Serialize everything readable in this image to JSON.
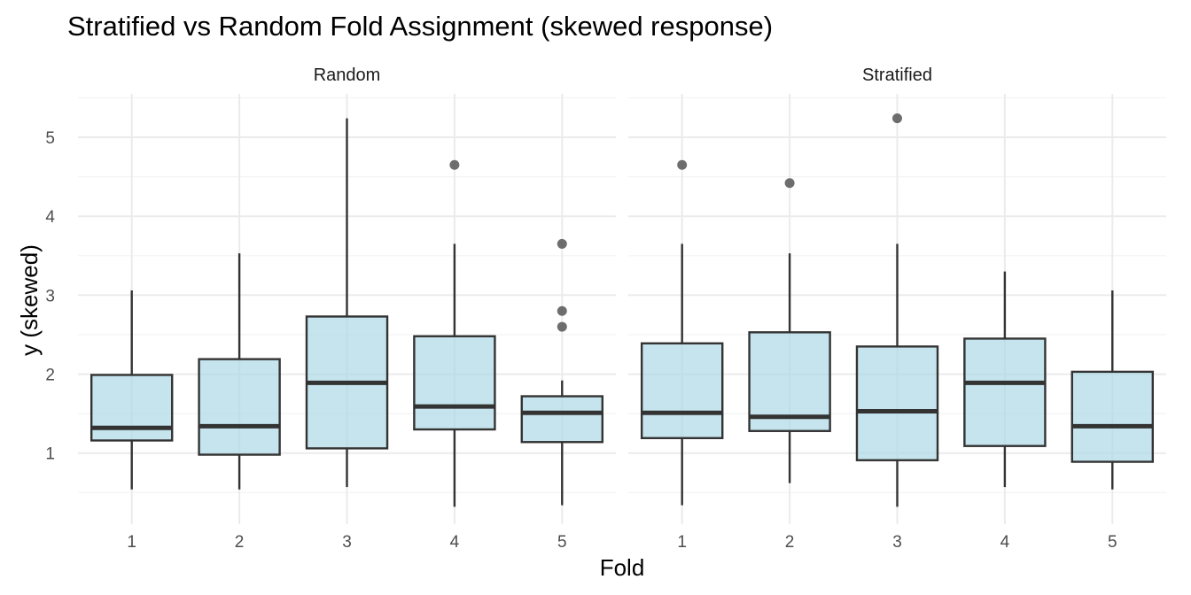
{
  "chart_data": {
    "type": "boxplot",
    "title": "Stratified vs Random Fold Assignment (skewed response)",
    "xlabel": "Fold",
    "ylabel": "y (skewed)",
    "ylim": [
      0.1,
      5.55
    ],
    "yticks": [
      1,
      2,
      3,
      4,
      5
    ],
    "categories": [
      "1",
      "2",
      "3",
      "4",
      "5"
    ],
    "grid": true,
    "colors": {
      "box_fill": "#add8e6",
      "box_line": "#333333",
      "outlier": "#555555"
    },
    "panels": [
      {
        "name": "Random",
        "boxes": [
          {
            "fold": "1",
            "lower": 0.54,
            "q1": 1.16,
            "median": 1.32,
            "q3": 1.99,
            "upper": 3.06,
            "outliers": []
          },
          {
            "fold": "2",
            "lower": 0.54,
            "q1": 0.98,
            "median": 1.34,
            "q3": 2.19,
            "upper": 3.53,
            "outliers": []
          },
          {
            "fold": "3",
            "lower": 0.57,
            "q1": 1.06,
            "median": 1.89,
            "q3": 2.73,
            "upper": 5.24,
            "outliers": []
          },
          {
            "fold": "4",
            "lower": 0.32,
            "q1": 1.3,
            "median": 1.59,
            "q3": 2.48,
            "upper": 3.65,
            "outliers": [
              4.65
            ]
          },
          {
            "fold": "5",
            "lower": 0.34,
            "q1": 1.14,
            "median": 1.51,
            "q3": 1.72,
            "upper": 1.92,
            "outliers": [
              3.65,
              2.8,
              2.6
            ]
          }
        ]
      },
      {
        "name": "Stratified",
        "boxes": [
          {
            "fold": "1",
            "lower": 0.34,
            "q1": 1.19,
            "median": 1.51,
            "q3": 2.39,
            "upper": 3.65,
            "outliers": [
              4.65
            ]
          },
          {
            "fold": "2",
            "lower": 0.62,
            "q1": 1.28,
            "median": 1.46,
            "q3": 2.53,
            "upper": 3.53,
            "outliers": [
              4.42
            ]
          },
          {
            "fold": "3",
            "lower": 0.32,
            "q1": 0.91,
            "median": 1.53,
            "q3": 2.35,
            "upper": 3.65,
            "outliers": [
              5.24
            ]
          },
          {
            "fold": "4",
            "lower": 0.57,
            "q1": 1.09,
            "median": 1.89,
            "q3": 2.45,
            "upper": 3.3,
            "outliers": []
          },
          {
            "fold": "5",
            "lower": 0.54,
            "q1": 0.89,
            "median": 1.34,
            "q3": 2.03,
            "upper": 3.06,
            "outliers": []
          }
        ]
      }
    ]
  }
}
